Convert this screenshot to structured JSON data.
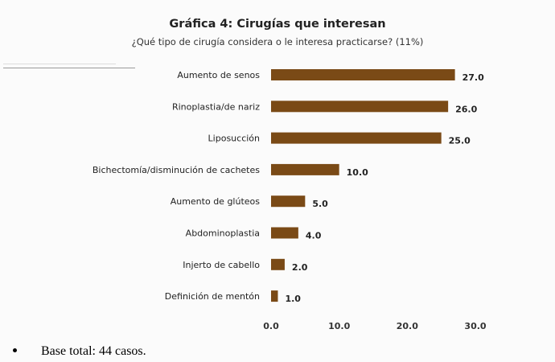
{
  "slide": {
    "title": "Gráfica 4: Cirugías que interesan",
    "subtitle": "¿Qué tipo de cirugía  considera o le interesa practicarse? (11%)",
    "footnote": "Base total: 44 casos."
  },
  "chart_data": {
    "type": "bar",
    "orientation": "horizontal",
    "title": "Gráfica 4: Cirugías que interesan",
    "subtitle": "¿Qué tipo de cirugía  considera o le interesa practicarse? (11%)",
    "categories": [
      "Aumento de senos",
      "Rinoplastia/de nariz",
      "Liposucción",
      "Bichectomía/disminución de cachetes",
      "Aumento de glúteos",
      "Abdominoplastia",
      "Injerto de cabello",
      "Definición de mentón"
    ],
    "values": [
      27.0,
      26.0,
      25.0,
      10.0,
      5.0,
      4.0,
      2.0,
      1.0
    ],
    "value_labels": [
      "27.0",
      "26.0",
      "25.0",
      "10.0",
      "5.0",
      "4.0",
      "2.0",
      "1.0"
    ],
    "xlim": [
      0,
      30
    ],
    "x_ticks": [
      0,
      10,
      20,
      30
    ],
    "x_tick_labels": [
      "0.0",
      "10.0",
      "20.0",
      "30.0"
    ],
    "bar_color": "#7a4a16",
    "grid": false,
    "legend": "none"
  }
}
